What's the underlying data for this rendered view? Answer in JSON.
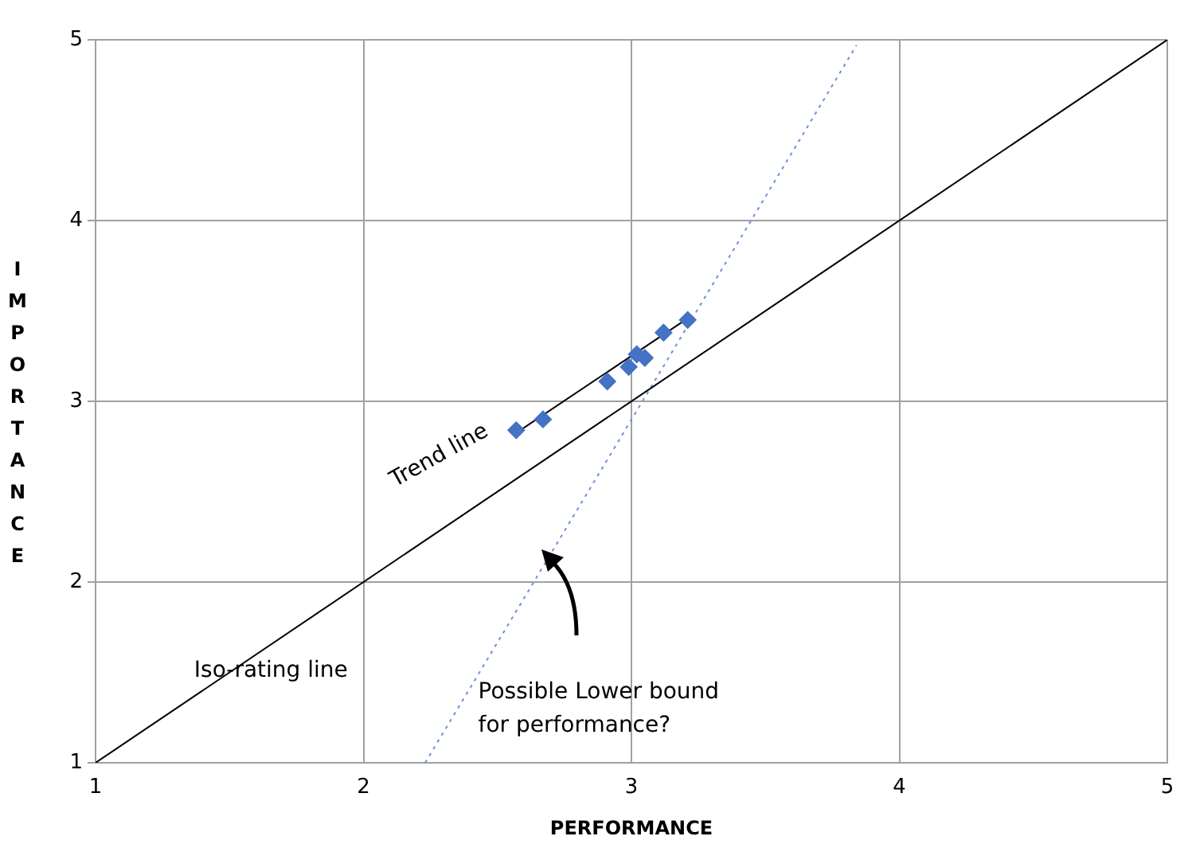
{
  "chart_data": {
    "type": "scatter",
    "xlabel": "PERFORMANCE",
    "ylabel": "IMPORTANCE",
    "xlim": [
      1,
      5
    ],
    "ylim": [
      1,
      5
    ],
    "xticks": [
      1,
      2,
      3,
      4,
      5
    ],
    "yticks": [
      1,
      2,
      3,
      4,
      5
    ],
    "grid": true,
    "legend": false,
    "series": [
      {
        "color": "#4472c4",
        "marker": "diamond",
        "x": [
          2.57,
          2.67,
          2.91,
          2.99,
          3.02,
          3.05,
          3.12,
          3.21
        ],
        "values": [
          2.84,
          2.9,
          3.11,
          3.19,
          3.26,
          3.24,
          3.38,
          3.45
        ]
      },
      {
        "type": "line",
        "color": "#000000",
        "marker": "none",
        "line_style": "solid",
        "x": [
          2.565,
          3.211
        ],
        "values": [
          2.82,
          3.46
        ]
      },
      {
        "type": "line",
        "color": "#000000",
        "marker": "none",
        "line_style": "solid",
        "x": [
          1,
          5
        ],
        "values": [
          1,
          5
        ]
      },
      {
        "type": "line",
        "color": "#6f8fd8",
        "marker": "none",
        "line_style": "dotted",
        "x": [
          2.23,
          3.84
        ],
        "values": [
          1,
          4.97
        ]
      }
    ],
    "annotations": [
      "Trend line",
      "Iso-rating line",
      "Possible Lower bound\nfor performance?"
    ]
  }
}
